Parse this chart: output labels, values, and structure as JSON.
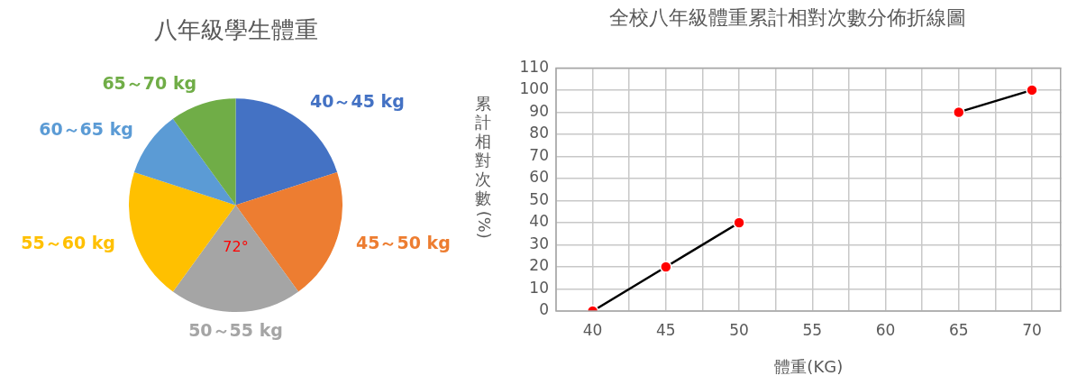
{
  "chart_data": [
    {
      "type": "pie",
      "title": "八年級學生體重",
      "categories": [
        "40～45 kg",
        "45～50 kg",
        "50～55 kg",
        "55～60 kg",
        "60～65 kg",
        "65～70 kg"
      ],
      "values": [
        20,
        20,
        20,
        20,
        10,
        10
      ],
      "colors": [
        "#4472c4",
        "#ed7d31",
        "#a5a5a5",
        "#ffc000",
        "#5b9bd5",
        "#70ad47"
      ],
      "legend": false,
      "annotations": [
        {
          "text": "72°",
          "x": "50～55 kg"
        }
      ]
    },
    {
      "type": "line",
      "title": "全校八年級體重累計相對次數分佈折線圖",
      "xlabel": "體重(KG)",
      "ylabel": "累計相對次數(%)",
      "x": [
        40,
        45,
        50,
        55,
        60,
        65,
        70
      ],
      "series": [
        {
          "color": "#000000",
          "colors": [
            "#ff0000",
            "#ff0000",
            "#ff0000",
            "#ff0000",
            "#ff0000",
            "#ff0000",
            "#ff0000"
          ],
          "values": [
            0,
            20,
            40,
            null,
            null,
            90,
            100
          ]
        }
      ],
      "xlim": [
        37.5,
        72
      ],
      "xticks": [
        {
          "value": 37.5,
          "label": null
        },
        40,
        {
          "value": 42.5,
          "label": null
        },
        45,
        {
          "value": 47.5,
          "label": null
        },
        50,
        {
          "value": 52.5,
          "label": null
        },
        55,
        {
          "value": 57.5,
          "label": null
        },
        60,
        {
          "value": 62.5,
          "label": null
        },
        65,
        {
          "value": 67.5,
          "label": null
        },
        70
      ],
      "ylim": [
        0,
        110
      ],
      "yticks": [
        0,
        10,
        20,
        30,
        40,
        50,
        60,
        70,
        80,
        90,
        100,
        110
      ],
      "grid": true,
      "legend": false,
      "marker": "circle",
      "line_style": "solid"
    }
  ]
}
